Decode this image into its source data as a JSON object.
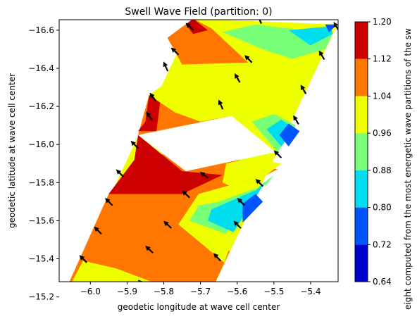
{
  "chart_data": {
    "type": "contourf",
    "title": "Swell Wave Field (partition: 0)",
    "xlabel": "geodetic longitude at wave cell center",
    "ylabel": "geodetic latitude at wave cell center",
    "colorbar_label": "eight computed from the most energetic wave partitions of the sw",
    "xlim": [
      -6.085,
      -5.325
    ],
    "ylim": [
      -16.655,
      -15.28
    ],
    "x_ticks": [
      -6.0,
      -5.9,
      -5.8,
      -5.7,
      -5.6,
      -5.5,
      -5.4
    ],
    "x_tick_labels": [
      "−6.0",
      "−5.9",
      "−5.8",
      "−5.7",
      "−5.6",
      "−5.5",
      "−5.4"
    ],
    "y_ticks": [
      -15.2,
      -15.4,
      -15.6,
      -15.8,
      -16.0,
      -16.2,
      -16.4,
      -16.6
    ],
    "y_tick_labels": [
      "−15.2",
      "−15.4",
      "−15.6",
      "−15.8",
      "−16.0",
      "−16.2",
      "−16.4",
      "−16.6"
    ],
    "colorbar_levels": [
      0.64,
      0.72,
      0.8,
      0.88,
      0.96,
      1.04,
      1.12,
      1.2
    ],
    "colorbar_tick_labels": [
      "0.64",
      "0.72",
      "0.80",
      "0.88",
      "0.96",
      "1.04",
      "1.12",
      "1.20"
    ],
    "colorbar_colors": [
      "#0000cc",
      "#0055ff",
      "#00ddee",
      "#77ff77",
      "#eeff00",
      "#ff7700",
      "#cc0000"
    ],
    "swath_outline": [
      [
        -6.085,
        -15.16
      ],
      [
        -5.69,
        -15.15
      ],
      [
        -5.327,
        -16.63
      ],
      [
        -5.72,
        -16.66
      ]
    ],
    "no_data_gap": [
      [
        -5.87,
        -16.05
      ],
      [
        -5.74,
        -15.86
      ],
      [
        -5.495,
        -15.96
      ],
      [
        -5.615,
        -16.15
      ]
    ],
    "contour_regions": [
      {
        "level_range": [
          1.04,
          1.12
        ],
        "polygon": [
          [
            -6.085,
            -15.16
          ],
          [
            -5.69,
            -15.15
          ],
          [
            -5.62,
            -15.44
          ],
          [
            -5.7,
            -15.52
          ],
          [
            -5.76,
            -15.58
          ],
          [
            -5.705,
            -15.74
          ],
          [
            -5.52,
            -15.84
          ],
          [
            -5.49,
            -15.87
          ],
          [
            -5.62,
            -15.93
          ],
          [
            -5.75,
            -15.88
          ],
          [
            -5.72,
            -15.98
          ],
          [
            -5.88,
            -15.92
          ],
          [
            -5.95,
            -15.74
          ]
        ]
      },
      {
        "level_range": [
          0.96,
          1.04
        ],
        "polygon": [
          [
            -6.08,
            -15.17
          ],
          [
            -5.94,
            -15.16
          ],
          [
            -5.83,
            -15.2
          ],
          [
            -5.7,
            -15.21
          ],
          [
            -5.82,
            -15.27
          ],
          [
            -5.93,
            -15.35
          ],
          [
            -6.02,
            -15.39
          ]
        ]
      },
      {
        "level_range": [
          0.88,
          0.96
        ],
        "polygon": [
          [
            -5.97,
            -15.16
          ],
          [
            -5.83,
            -15.16
          ],
          [
            -5.76,
            -15.17
          ],
          [
            -5.84,
            -15.2
          ],
          [
            -5.9,
            -15.21
          ]
        ]
      },
      {
        "level_range": [
          0.8,
          0.88
        ],
        "polygon": [
          [
            -5.94,
            -15.16
          ],
          [
            -5.8,
            -15.16
          ],
          [
            -5.86,
            -15.19
          ]
        ]
      },
      {
        "level_range": [
          0.96,
          1.04
        ],
        "polygon": [
          [
            -5.635,
            -15.38
          ],
          [
            -5.76,
            -15.58
          ],
          [
            -5.705,
            -15.74
          ],
          [
            -5.52,
            -15.84
          ],
          [
            -5.48,
            -15.9
          ],
          [
            -5.56,
            -15.93
          ],
          [
            -5.63,
            -15.9
          ],
          [
            -5.64,
            -15.8
          ],
          [
            -5.57,
            -15.74
          ]
        ]
      },
      {
        "level_range": [
          0.88,
          0.96
        ],
        "polygon": [
          [
            -5.63,
            -15.53
          ],
          [
            -5.73,
            -15.6
          ],
          [
            -5.705,
            -15.68
          ],
          [
            -5.65,
            -15.7
          ],
          [
            -5.52,
            -15.79
          ],
          [
            -5.5,
            -15.84
          ],
          [
            -5.58,
            -15.72
          ]
        ]
      },
      {
        "level_range": [
          0.8,
          0.88
        ],
        "polygon": [
          [
            -5.61,
            -15.54
          ],
          [
            -5.68,
            -15.6
          ],
          [
            -5.67,
            -15.66
          ],
          [
            -5.55,
            -15.76
          ],
          [
            -5.525,
            -15.8
          ],
          [
            -5.56,
            -15.69
          ]
        ]
      },
      {
        "level_range": [
          0.72,
          0.8
        ],
        "polygon": [
          [
            -5.585,
            -15.59
          ],
          [
            -5.585,
            -15.69
          ],
          [
            -5.55,
            -15.74
          ],
          [
            -5.53,
            -15.7
          ]
        ]
      },
      {
        "level_range": [
          1.12,
          1.2
        ],
        "polygon": [
          [
            -5.95,
            -15.74
          ],
          [
            -5.75,
            -15.74
          ],
          [
            -5.64,
            -15.84
          ],
          [
            -5.75,
            -15.86
          ],
          [
            -5.87,
            -16.05
          ],
          [
            -5.88,
            -15.92
          ]
        ]
      },
      {
        "level_range": [
          1.04,
          1.12
        ],
        "polygon": [
          [
            -5.87,
            -16.05
          ],
          [
            -5.84,
            -16.26
          ],
          [
            -5.77,
            -16.17
          ],
          [
            -5.7,
            -16.12
          ],
          [
            -5.615,
            -16.15
          ]
        ]
      },
      {
        "level_range": [
          1.12,
          1.2
        ],
        "polygon": [
          [
            -5.87,
            -16.07
          ],
          [
            -5.82,
            -16.07
          ],
          [
            -5.81,
            -16.22
          ],
          [
            -5.84,
            -16.26
          ],
          [
            -5.85,
            -16.12
          ]
        ]
      },
      {
        "level_range": [
          0.96,
          1.04
        ],
        "polygon": [
          [
            -5.84,
            -16.26
          ],
          [
            -5.74,
            -16.4
          ],
          [
            -5.69,
            -16.42
          ],
          [
            -5.57,
            -16.38
          ],
          [
            -5.44,
            -16.44
          ],
          [
            -5.4,
            -16.39
          ],
          [
            -5.44,
            -16.25
          ],
          [
            -5.59,
            -16.17
          ],
          [
            -5.7,
            -16.12
          ],
          [
            -5.77,
            -16.17
          ]
        ]
      },
      {
        "level_range": [
          0.96,
          1.04
        ],
        "polygon": [
          [
            -5.615,
            -16.15
          ],
          [
            -5.495,
            -15.96
          ],
          [
            -5.45,
            -16.15
          ],
          [
            -5.53,
            -16.19
          ]
        ]
      },
      {
        "level_range": [
          0.88,
          0.96
        ],
        "polygon": [
          [
            -5.56,
            -16.12
          ],
          [
            -5.49,
            -15.96
          ],
          [
            -5.44,
            -16.1
          ],
          [
            -5.5,
            -16.16
          ]
        ]
      },
      {
        "level_range": [
          0.8,
          0.88
        ],
        "polygon": [
          [
            -5.52,
            -16.08
          ],
          [
            -5.48,
            -15.99
          ],
          [
            -5.44,
            -16.08
          ],
          [
            -5.48,
            -16.13
          ]
        ]
      },
      {
        "level_range": [
          0.72,
          0.8
        ],
        "polygon": [
          [
            -5.485,
            -16.05
          ],
          [
            -5.46,
            -15.99
          ],
          [
            -5.43,
            -16.07
          ],
          [
            -5.46,
            -16.11
          ]
        ]
      },
      {
        "level_range": [
          1.04,
          1.12
        ],
        "polygon": [
          [
            -5.75,
            -16.42
          ],
          [
            -5.57,
            -16.43
          ],
          [
            -5.67,
            -16.61
          ],
          [
            -5.72,
            -16.66
          ],
          [
            -5.79,
            -16.56
          ]
        ]
      },
      {
        "level_range": [
          1.12,
          1.2
        ],
        "polygon": [
          [
            -5.72,
            -16.58
          ],
          [
            -5.68,
            -16.6
          ],
          [
            -5.72,
            -16.66
          ],
          [
            -5.74,
            -16.63
          ]
        ]
      },
      {
        "level_range": [
          0.88,
          0.96
        ],
        "polygon": [
          [
            -5.45,
            -16.45
          ],
          [
            -5.36,
            -16.5
          ],
          [
            -5.34,
            -16.58
          ],
          [
            -5.55,
            -16.63
          ],
          [
            -5.64,
            -16.59
          ],
          [
            -5.53,
            -16.5
          ]
        ]
      },
      {
        "level_range": [
          0.8,
          0.88
        ],
        "polygon": [
          [
            -5.4,
            -16.52
          ],
          [
            -5.34,
            -16.58
          ],
          [
            -5.345,
            -16.62
          ],
          [
            -5.46,
            -16.6
          ]
        ]
      },
      {
        "level_range": [
          0.72,
          0.8
        ],
        "polygon": [
          [
            -5.35,
            -16.59
          ],
          [
            -5.327,
            -16.63
          ],
          [
            -5.36,
            -16.63
          ]
        ]
      }
    ],
    "quiver": [
      {
        "x": -5.885,
        "y": -15.15,
        "u": 0.4,
        "v": -0.9
      },
      {
        "x": -5.86,
        "y": -15.27,
        "u": 0.7,
        "v": -0.7
      },
      {
        "x": -5.84,
        "y": -15.45,
        "u": 0.75,
        "v": -0.7
      },
      {
        "x": -5.79,
        "y": -15.58,
        "u": 0.75,
        "v": -0.7
      },
      {
        "x": -5.74,
        "y": -15.74,
        "u": 0.75,
        "v": -0.7
      },
      {
        "x": -5.69,
        "y": -15.84,
        "u": 0.8,
        "v": -0.6
      },
      {
        "x": -5.685,
        "y": -15.26,
        "u": 0.7,
        "v": -0.7
      },
      {
        "x": -5.655,
        "y": -15.41,
        "u": 0.65,
        "v": -0.75
      },
      {
        "x": -5.6,
        "y": -15.58,
        "u": 0.7,
        "v": -0.7
      },
      {
        "x": -5.59,
        "y": -15.7,
        "u": 0.7,
        "v": -0.7
      },
      {
        "x": -5.54,
        "y": -15.8,
        "u": 0.7,
        "v": -0.7
      },
      {
        "x": -5.49,
        "y": -15.95,
        "u": 0.7,
        "v": -0.7
      },
      {
        "x": -5.44,
        "y": -16.13,
        "u": 0.5,
        "v": -0.85
      },
      {
        "x": -5.42,
        "y": -16.29,
        "u": 0.5,
        "v": -0.85
      },
      {
        "x": -5.37,
        "y": -16.47,
        "u": 0.5,
        "v": -0.85
      },
      {
        "x": -5.33,
        "y": -16.62,
        "u": 0.5,
        "v": -0.85
      },
      {
        "x": -6.07,
        "y": -15.25,
        "u": 0.7,
        "v": -0.7
      },
      {
        "x": -6.02,
        "y": -15.4,
        "u": 0.7,
        "v": -0.7
      },
      {
        "x": -5.98,
        "y": -15.55,
        "u": 0.7,
        "v": -0.7
      },
      {
        "x": -5.95,
        "y": -15.7,
        "u": 0.7,
        "v": -0.7
      },
      {
        "x": -5.92,
        "y": -15.85,
        "u": 0.7,
        "v": -0.7
      },
      {
        "x": -5.88,
        "y": -16.0,
        "u": 0.7,
        "v": -0.7
      },
      {
        "x": -5.84,
        "y": -16.15,
        "u": 0.6,
        "v": -0.8
      },
      {
        "x": -5.83,
        "y": -16.25,
        "u": 0.6,
        "v": -0.8
      },
      {
        "x": -5.795,
        "y": -16.41,
        "u": 0.4,
        "v": -0.9
      },
      {
        "x": -5.77,
        "y": -16.49,
        "u": 0.75,
        "v": -0.7
      },
      {
        "x": -5.73,
        "y": -16.62,
        "u": 0.75,
        "v": -0.7
      },
      {
        "x": -5.645,
        "y": -16.21,
        "u": 0.4,
        "v": -0.9
      },
      {
        "x": -5.6,
        "y": -16.35,
        "u": 0.5,
        "v": -0.85
      },
      {
        "x": -5.57,
        "y": -16.45,
        "u": 0.7,
        "v": -0.7
      },
      {
        "x": -5.54,
        "y": -16.66,
        "u": 0.4,
        "v": -0.9
      }
    ]
  }
}
